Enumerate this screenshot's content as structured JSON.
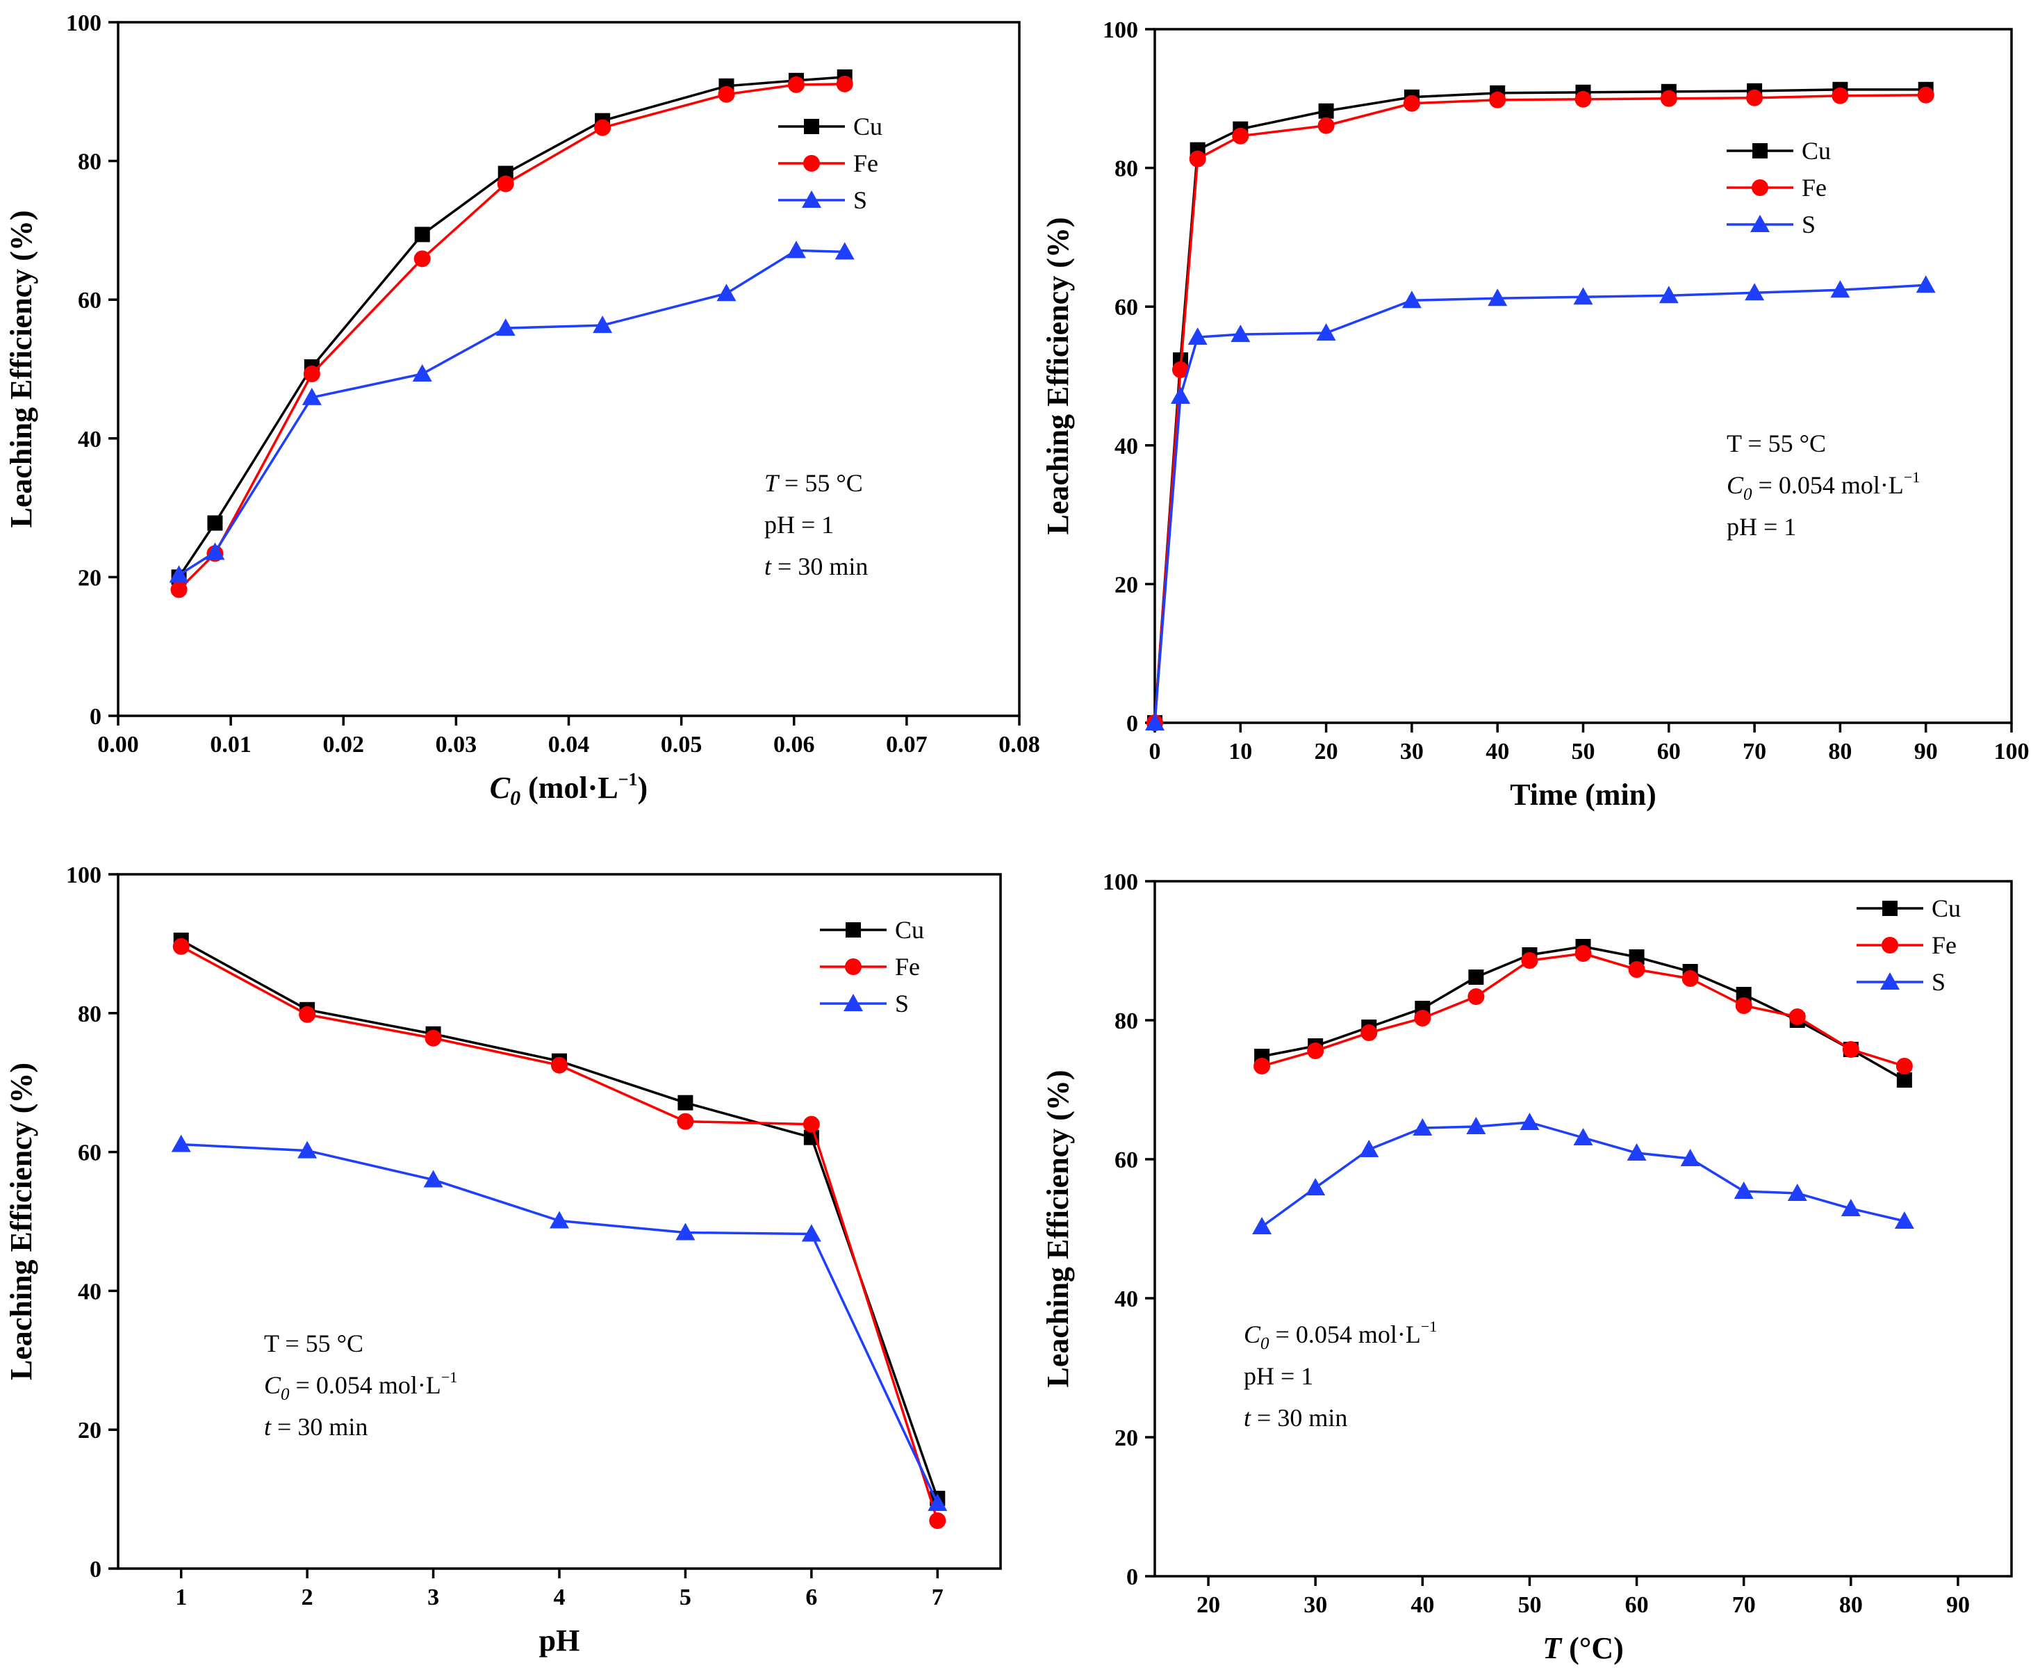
{
  "chart_data": [
    {
      "type": "line",
      "ylabel": "Leaching Efficiency (%)",
      "xlabel": {
        "symbol": "C",
        "subscript": "0",
        "unit_open": " (mol·L",
        "unit_sup": "−1",
        "unit_close": ")"
      },
      "xlim": [
        0,
        0.08
      ],
      "ylim": [
        0,
        100
      ],
      "xticks": [
        0,
        0.01,
        0.02,
        0.03,
        0.04,
        0.05,
        0.06,
        0.07,
        0.08
      ],
      "xtick_labels": [
        "0.00",
        "0.01",
        "0.02",
        "0.03",
        "0.04",
        "0.05",
        "0.06",
        "0.07",
        "0.08"
      ],
      "yticks": [
        0,
        20,
        40,
        60,
        80,
        100
      ],
      "ytick_labels": [
        "0",
        "20",
        "40",
        "60",
        "80",
        "100"
      ],
      "legend": "top-right",
      "conditions": [
        {
          "italic": "T",
          "text": " = 55 °C"
        },
        {
          "text": "pH = 1"
        },
        {
          "italic": "t",
          "text": " = 30 min"
        }
      ],
      "series": [
        {
          "name": "Cu",
          "marker": "square",
          "color": "#000000",
          "x": [
            0.0054,
            0.0086,
            0.0172,
            0.027,
            0.0344,
            0.043,
            0.054,
            0.0602,
            0.0645
          ],
          "y": [
            20.0,
            27.8,
            50.3,
            69.4,
            78.2,
            85.8,
            90.8,
            91.6,
            92.1
          ]
        },
        {
          "name": "Fe",
          "marker": "circle",
          "color": "#ff0000",
          "x": [
            0.0054,
            0.0086,
            0.0172,
            0.027,
            0.0344,
            0.043,
            0.054,
            0.0602,
            0.0645
          ],
          "y": [
            18.2,
            23.4,
            49.3,
            65.9,
            76.7,
            84.8,
            89.6,
            91.0,
            91.1
          ]
        },
        {
          "name": "S",
          "marker": "triangle",
          "color": "#1f3fff",
          "x": [
            0.0054,
            0.0086,
            0.0172,
            0.027,
            0.0344,
            0.043,
            0.054,
            0.0602,
            0.0645
          ],
          "y": [
            20.3,
            23.6,
            45.9,
            49.3,
            55.9,
            56.3,
            60.9,
            67.1,
            66.9
          ]
        }
      ]
    },
    {
      "type": "line",
      "ylabel": "Leaching Efficiency (%)",
      "xlabel": {
        "text": "Time (min)"
      },
      "xlim": [
        0,
        100
      ],
      "ylim": [
        0,
        100
      ],
      "xticks": [
        0,
        10,
        20,
        30,
        40,
        50,
        60,
        70,
        80,
        90,
        100
      ],
      "xtick_labels": [
        "0",
        "10",
        "20",
        "30",
        "40",
        "50",
        "60",
        "70",
        "80",
        "90",
        "100"
      ],
      "yticks": [
        0,
        20,
        40,
        60,
        80,
        100
      ],
      "ytick_labels": [
        "0",
        "20",
        "40",
        "60",
        "80",
        "100"
      ],
      "legend": "top-right",
      "conditions": [
        {
          "text": "T = 55 °C"
        },
        {
          "italic": "C",
          "subscript": "0",
          "text": " = 0.054 mol·L",
          "sup": "−1"
        },
        {
          "text": "pH = 1"
        }
      ],
      "series": [
        {
          "name": "Cu",
          "marker": "square",
          "color": "#000000",
          "x": [
            0,
            3,
            5,
            10,
            20,
            30,
            40,
            50,
            60,
            70,
            80,
            90
          ],
          "y": [
            0,
            52.3,
            82.6,
            85.6,
            88.2,
            90.2,
            90.8,
            90.9,
            91.0,
            91.1,
            91.3,
            91.3
          ]
        },
        {
          "name": "Fe",
          "marker": "circle",
          "color": "#ff0000",
          "x": [
            0,
            3,
            5,
            10,
            20,
            30,
            40,
            50,
            60,
            70,
            80,
            90
          ],
          "y": [
            0,
            50.9,
            81.3,
            84.6,
            86.1,
            89.3,
            89.8,
            89.9,
            90.0,
            90.1,
            90.4,
            90.5
          ]
        },
        {
          "name": "S",
          "marker": "triangle",
          "color": "#1f3fff",
          "x": [
            0,
            3,
            5,
            10,
            20,
            30,
            40,
            50,
            60,
            70,
            80,
            90
          ],
          "y": [
            0,
            47.1,
            55.6,
            56.0,
            56.2,
            60.9,
            61.2,
            61.4,
            61.6,
            62.0,
            62.4,
            63.1
          ]
        }
      ]
    },
    {
      "type": "line",
      "ylabel": "Leaching Efficiency (%)",
      "xlabel": {
        "text": "pH"
      },
      "xlim": [
        0.5,
        7.5
      ],
      "ylim": [
        0,
        100
      ],
      "xticks": [
        1,
        2,
        3,
        4,
        5,
        6,
        7
      ],
      "xtick_labels": [
        "1",
        "2",
        "3",
        "4",
        "5",
        "6",
        "7"
      ],
      "yticks": [
        0,
        20,
        40,
        60,
        80,
        100
      ],
      "ytick_labels": [
        "0",
        "20",
        "40",
        "60",
        "80",
        "100"
      ],
      "legend": "top-right",
      "conditions": [
        {
          "text": "T = 55 °C"
        },
        {
          "italic": "C",
          "subscript": "0",
          "text": " = 0.054 mol·L",
          "sup": "−1"
        },
        {
          "italic": "t",
          "text": " = 30 min"
        }
      ],
      "series": [
        {
          "name": "Cu",
          "marker": "square",
          "color": "#000000",
          "x": [
            1,
            2,
            3,
            4,
            5,
            6,
            7
          ],
          "y": [
            90.5,
            80.5,
            77.0,
            73.1,
            67.1,
            62.1,
            10.1
          ]
        },
        {
          "name": "Fe",
          "marker": "circle",
          "color": "#ff0000",
          "x": [
            1,
            2,
            3,
            4,
            5,
            6,
            7
          ],
          "y": [
            89.6,
            79.8,
            76.4,
            72.5,
            64.4,
            64.0,
            6.9
          ]
        },
        {
          "name": "S",
          "marker": "triangle",
          "color": "#1f3fff",
          "x": [
            1,
            2,
            3,
            4,
            5,
            6,
            7
          ],
          "y": [
            61.1,
            60.2,
            56.0,
            50.1,
            48.4,
            48.2,
            9.4
          ]
        }
      ]
    },
    {
      "type": "line",
      "ylabel": "Leaching Efficiency (%)",
      "xlabel": {
        "symbol": "T",
        "unit_open": " (°C)"
      },
      "xlim": [
        15,
        95
      ],
      "ylim": [
        0,
        100
      ],
      "xticks": [
        20,
        30,
        40,
        50,
        60,
        70,
        80,
        90
      ],
      "xtick_labels": [
        "20",
        "30",
        "40",
        "50",
        "60",
        "70",
        "80",
        "90"
      ],
      "yticks": [
        0,
        20,
        40,
        60,
        80,
        100
      ],
      "ytick_labels": [
        "0",
        "20",
        "40",
        "60",
        "80",
        "100"
      ],
      "legend": "top-right",
      "conditions": [
        {
          "italic": "C",
          "subscript": "0",
          "text": " = 0.054 mol·L",
          "sup": "−1"
        },
        {
          "text": "pH = 1"
        },
        {
          "italic": "t",
          "text": " = 30 min"
        }
      ],
      "series": [
        {
          "name": "Cu",
          "marker": "square",
          "color": "#000000",
          "x": [
            25,
            30,
            35,
            40,
            45,
            50,
            55,
            60,
            65,
            70,
            75,
            80,
            85
          ],
          "y": [
            74.8,
            76.3,
            79.0,
            81.7,
            86.2,
            89.4,
            90.6,
            89.1,
            87.0,
            83.7,
            80.0,
            75.8,
            71.4
          ]
        },
        {
          "name": "Fe",
          "marker": "circle",
          "color": "#ff0000",
          "x": [
            25,
            30,
            35,
            40,
            45,
            50,
            55,
            60,
            65,
            70,
            75,
            80,
            85
          ],
          "y": [
            73.4,
            75.6,
            78.2,
            80.3,
            83.4,
            88.6,
            89.6,
            87.3,
            86.0,
            82.1,
            80.5,
            75.8,
            73.4
          ]
        },
        {
          "name": "S",
          "marker": "triangle",
          "color": "#1f3fff",
          "x": [
            25,
            30,
            35,
            40,
            45,
            50,
            55,
            60,
            65,
            70,
            75,
            80,
            85
          ],
          "y": [
            50.3,
            55.9,
            61.4,
            64.5,
            64.7,
            65.3,
            63.1,
            60.9,
            60.1,
            55.4,
            55.1,
            52.9,
            51.1
          ]
        }
      ]
    }
  ]
}
